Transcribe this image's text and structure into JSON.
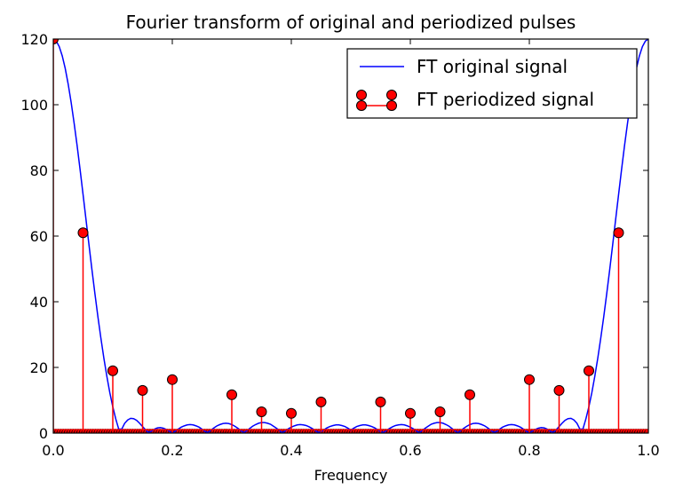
{
  "chart_data": {
    "type": "line",
    "title": "Fourier transform of original and periodized pulses",
    "xlabel": "Frequency",
    "ylabel": "",
    "xlim": [
      0.0,
      1.0
    ],
    "ylim": [
      0,
      120
    ],
    "x_ticks": [
      "0.0",
      "0.2",
      "0.4",
      "0.6",
      "0.8",
      "1.0"
    ],
    "y_ticks": [
      "0",
      "20",
      "40",
      "60",
      "80",
      "100",
      "120"
    ],
    "grid": false,
    "legend_position": "top-right",
    "colors": {
      "line": "#0000ff",
      "stem": "#ff0000",
      "marker_fill": "#ff0000",
      "marker_edge": "#000000"
    },
    "series": [
      {
        "name": "FT original signal",
        "kind": "line",
        "x": [
          0.0,
          0.005,
          0.01,
          0.015,
          0.02,
          0.025,
          0.03,
          0.035,
          0.04,
          0.045,
          0.05,
          0.055,
          0.06,
          0.065,
          0.07,
          0.075,
          0.08,
          0.085,
          0.09,
          0.095,
          0.1,
          0.105,
          0.11,
          0.115,
          0.12,
          0.125,
          0.13,
          0.135,
          0.14,
          0.145,
          0.15,
          0.155,
          0.16,
          0.165,
          0.17,
          0.175,
          0.18,
          0.185,
          0.19,
          0.195,
          0.2,
          0.205,
          0.21,
          0.215,
          0.22,
          0.225,
          0.23,
          0.235,
          0.24,
          0.245,
          0.25,
          0.255,
          0.26,
          0.265,
          0.27,
          0.275,
          0.28,
          0.285,
          0.29,
          0.295,
          0.3,
          0.305,
          0.31,
          0.315,
          0.32,
          0.325,
          0.33,
          0.335,
          0.34,
          0.345,
          0.35,
          0.355,
          0.36,
          0.365,
          0.37,
          0.375,
          0.38,
          0.385,
          0.39,
          0.395,
          0.4,
          0.405,
          0.41,
          0.415,
          0.42,
          0.425,
          0.43,
          0.435,
          0.44,
          0.445,
          0.45,
          0.455,
          0.46,
          0.465,
          0.47,
          0.475,
          0.48,
          0.485,
          0.49,
          0.495,
          0.5,
          0.505,
          0.51,
          0.515,
          0.52,
          0.525,
          0.53,
          0.535,
          0.54,
          0.545,
          0.55,
          0.555,
          0.56,
          0.565,
          0.57,
          0.575,
          0.58,
          0.585,
          0.59,
          0.595,
          0.6,
          0.605,
          0.61,
          0.615,
          0.62,
          0.625,
          0.63,
          0.635,
          0.64,
          0.645,
          0.65,
          0.655,
          0.66,
          0.665,
          0.67,
          0.675,
          0.68,
          0.685,
          0.69,
          0.695,
          0.7,
          0.705,
          0.71,
          0.715,
          0.72,
          0.725,
          0.73,
          0.735,
          0.74,
          0.745,
          0.75,
          0.755,
          0.76,
          0.765,
          0.77,
          0.775,
          0.78,
          0.785,
          0.79,
          0.795,
          0.8,
          0.805,
          0.81,
          0.815,
          0.82,
          0.825,
          0.83,
          0.835,
          0.84,
          0.845,
          0.85,
          0.855,
          0.86,
          0.865,
          0.87,
          0.875,
          0.88,
          0.885,
          0.89,
          0.895,
          0.9,
          0.905,
          0.91,
          0.915,
          0.92,
          0.925,
          0.93,
          0.935,
          0.94,
          0.945,
          0.95,
          0.955,
          0.96,
          0.965,
          0.97,
          0.975,
          0.98,
          0.985,
          0.99,
          0.995,
          1.0
        ],
        "values": [
          120,
          119.4,
          117.7,
          114.9,
          111.1,
          106.3,
          100.7,
          94.4,
          87.6,
          80.3,
          72.7,
          65.0,
          57.3,
          49.7,
          42.4,
          35.4,
          28.9,
          22.8,
          17.3,
          12.3,
          8.0,
          4.3,
          1.2,
          1.2,
          3.0,
          4.0,
          4.5,
          4.4,
          3.9,
          3.0,
          2.0,
          1.0,
          0.2,
          0.6,
          1.2,
          1.6,
          1.7,
          1.5,
          1.1,
          0.6,
          0.0,
          0.6,
          1.2,
          1.8,
          2.2,
          2.5,
          2.6,
          2.5,
          2.2,
          1.8,
          1.2,
          0.5,
          0.2,
          0.9,
          1.6,
          2.2,
          2.6,
          2.9,
          3.0,
          2.9,
          2.6,
          2.1,
          1.5,
          0.8,
          0.1,
          0.7,
          1.4,
          2.1,
          2.6,
          3.0,
          3.2,
          3.2,
          3.0,
          2.7,
          2.1,
          1.5,
          0.8,
          0.1,
          0.7,
          1.3,
          1.8,
          2.2,
          2.5,
          2.6,
          2.5,
          2.3,
          1.9,
          1.4,
          0.8,
          0.2,
          0.4,
          1.0,
          1.6,
          2.0,
          2.3,
          2.5,
          2.5,
          2.3,
          2.0,
          1.5,
          0.9,
          1.5,
          2.0,
          2.3,
          2.5,
          2.5,
          2.3,
          2.0,
          1.6,
          1.0,
          0.4,
          0.2,
          0.8,
          1.4,
          1.9,
          2.3,
          2.5,
          2.6,
          2.5,
          2.2,
          1.8,
          1.3,
          0.7,
          0.1,
          0.8,
          1.5,
          2.1,
          2.7,
          3.0,
          3.2,
          3.2,
          3.0,
          2.6,
          2.1,
          1.4,
          0.7,
          0.1,
          0.8,
          1.5,
          2.1,
          2.6,
          2.9,
          3.0,
          2.9,
          2.6,
          2.2,
          1.6,
          0.9,
          0.2,
          0.5,
          1.2,
          1.8,
          2.2,
          2.5,
          2.6,
          2.5,
          2.2,
          1.8,
          1.2,
          0.6,
          0.0,
          0.6,
          1.1,
          1.5,
          1.7,
          1.6,
          1.2,
          0.6,
          0.2,
          1.0,
          2.0,
          3.0,
          3.9,
          4.4,
          4.5,
          4.0,
          3.0,
          1.2,
          1.2,
          4.3,
          8.0,
          12.3,
          17.3,
          22.8,
          28.9,
          35.4,
          42.4,
          49.7,
          57.3,
          65.0,
          72.7,
          80.3,
          87.6,
          94.4,
          100.7,
          106.3,
          111.1,
          114.9,
          117.7,
          119.4,
          120
        ]
      },
      {
        "name": "FT periodized signal",
        "kind": "stem",
        "x": [
          0.0,
          0.05,
          0.1,
          0.15,
          0.2,
          0.3,
          0.35,
          0.4,
          0.45,
          0.55,
          0.6,
          0.65,
          0.7,
          0.8,
          0.85,
          0.9,
          0.95
        ],
        "values": [
          120,
          61,
          19,
          13,
          16.3,
          11.7,
          6.5,
          6,
          9.5,
          9.5,
          6,
          6.5,
          11.7,
          16.3,
          13,
          19,
          61
        ]
      }
    ]
  }
}
